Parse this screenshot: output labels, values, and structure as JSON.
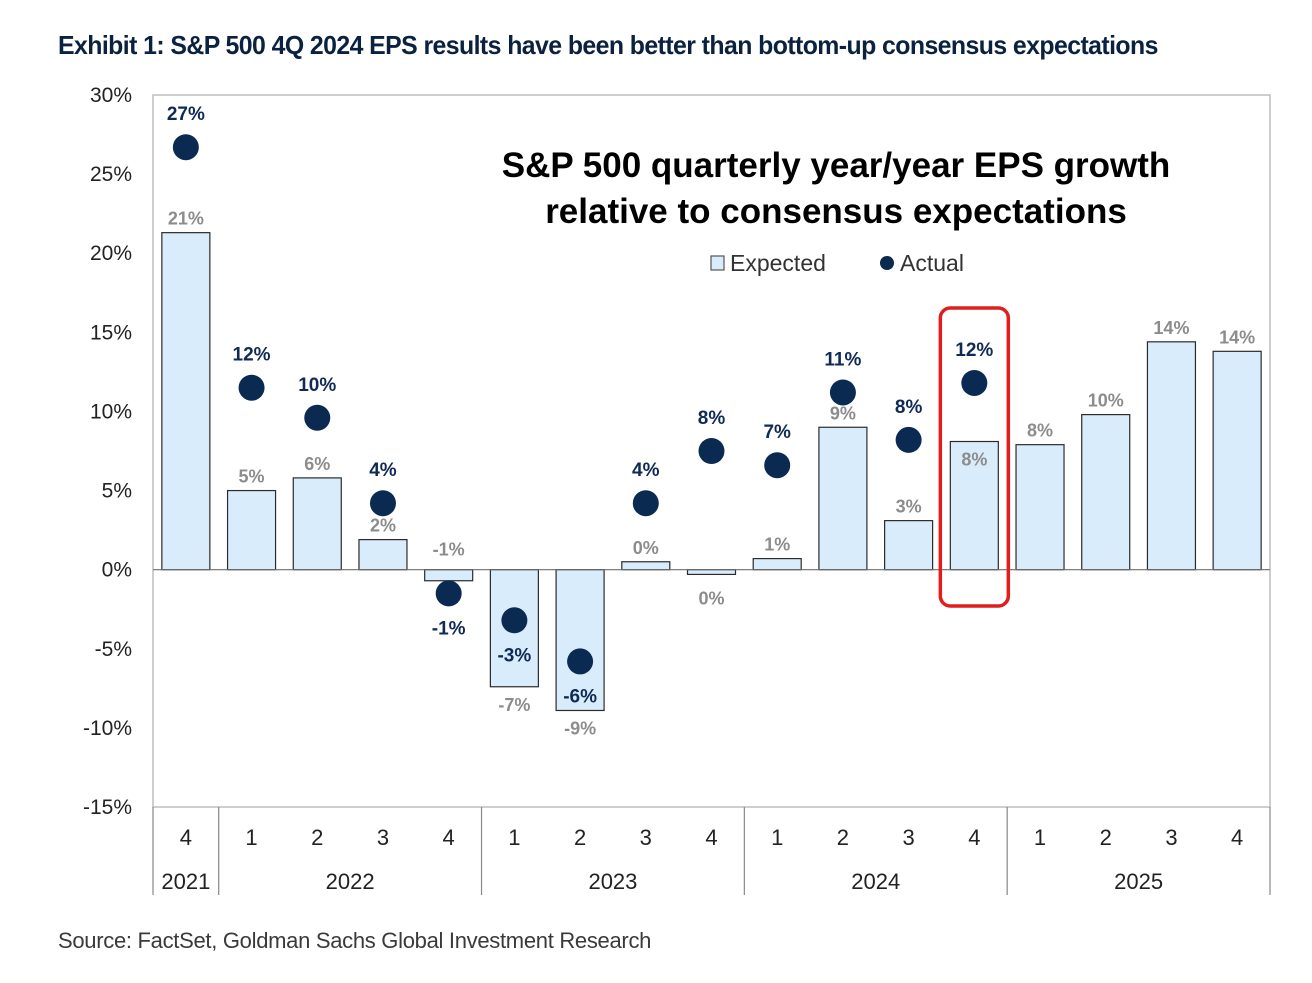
{
  "exhibit_title": "Exhibit 1: S&P 500 4Q 2024 EPS results have been better than bottom-up consensus expectations",
  "source": "Source: FactSet, Goldman Sachs Global Investment Research",
  "colors": {
    "expected_fill": "#d9ecfb",
    "expected_stroke": "#2b2b2b",
    "actual_dot": "#0b2a52",
    "highlight_box": "#e01e1e"
  },
  "chart_data": {
    "type": "bar",
    "title": "S&P 500 quarterly year/year EPS growth relative to consensus expectations",
    "title_lines": [
      "S&P 500 quarterly  year/year EPS growth",
      "relative to consensus expectations"
    ],
    "ylim": [
      -15,
      30
    ],
    "y_ticks": [
      30,
      25,
      20,
      15,
      10,
      5,
      0,
      -5,
      -10,
      -15
    ],
    "y_tick_labels": [
      "30%",
      "25%",
      "20%",
      "15%",
      "10%",
      "5%",
      "0%",
      "-5%",
      "-10%",
      "-15%"
    ],
    "legend": {
      "placement": "top-center",
      "entries": [
        "Expected",
        "Actual"
      ]
    },
    "categories": [
      "4",
      "1",
      "2",
      "3",
      "4",
      "1",
      "2",
      "3",
      "4",
      "1",
      "2",
      "3",
      "4",
      "1",
      "2",
      "3",
      "4"
    ],
    "year_groups": [
      {
        "label": "2021",
        "count": 1
      },
      {
        "label": "2022",
        "count": 4
      },
      {
        "label": "2023",
        "count": 4
      },
      {
        "label": "2024",
        "count": 4
      },
      {
        "label": "2025",
        "count": 4
      }
    ],
    "series": [
      {
        "name": "Expected",
        "kind": "bar",
        "values": [
          21.3,
          5.0,
          5.8,
          1.9,
          -0.7,
          -7.4,
          -8.9,
          0.5,
          -0.3,
          0.7,
          9.0,
          3.1,
          8.1,
          7.9,
          9.8,
          14.4,
          13.8
        ],
        "labels": [
          "21%",
          "5%",
          "6%",
          "2%",
          "-1%",
          "-7%",
          "-9%",
          "0%",
          "0%",
          "1%",
          "9%",
          "3%",
          "8%",
          "8%",
          "10%",
          "14%",
          "14%"
        ]
      },
      {
        "name": "Actual",
        "kind": "dot",
        "values": [
          26.7,
          11.5,
          9.6,
          4.2,
          -1.5,
          -3.2,
          -5.8,
          4.2,
          7.5,
          6.6,
          11.2,
          8.2,
          11.8,
          null,
          null,
          null,
          null
        ],
        "labels": [
          "27%",
          "12%",
          "10%",
          "4%",
          "-1%",
          "-3%",
          "-6%",
          "4%",
          "8%",
          "7%",
          "11%",
          "8%",
          "12%",
          null,
          null,
          null,
          null
        ]
      }
    ],
    "highlight_index": 12
  }
}
